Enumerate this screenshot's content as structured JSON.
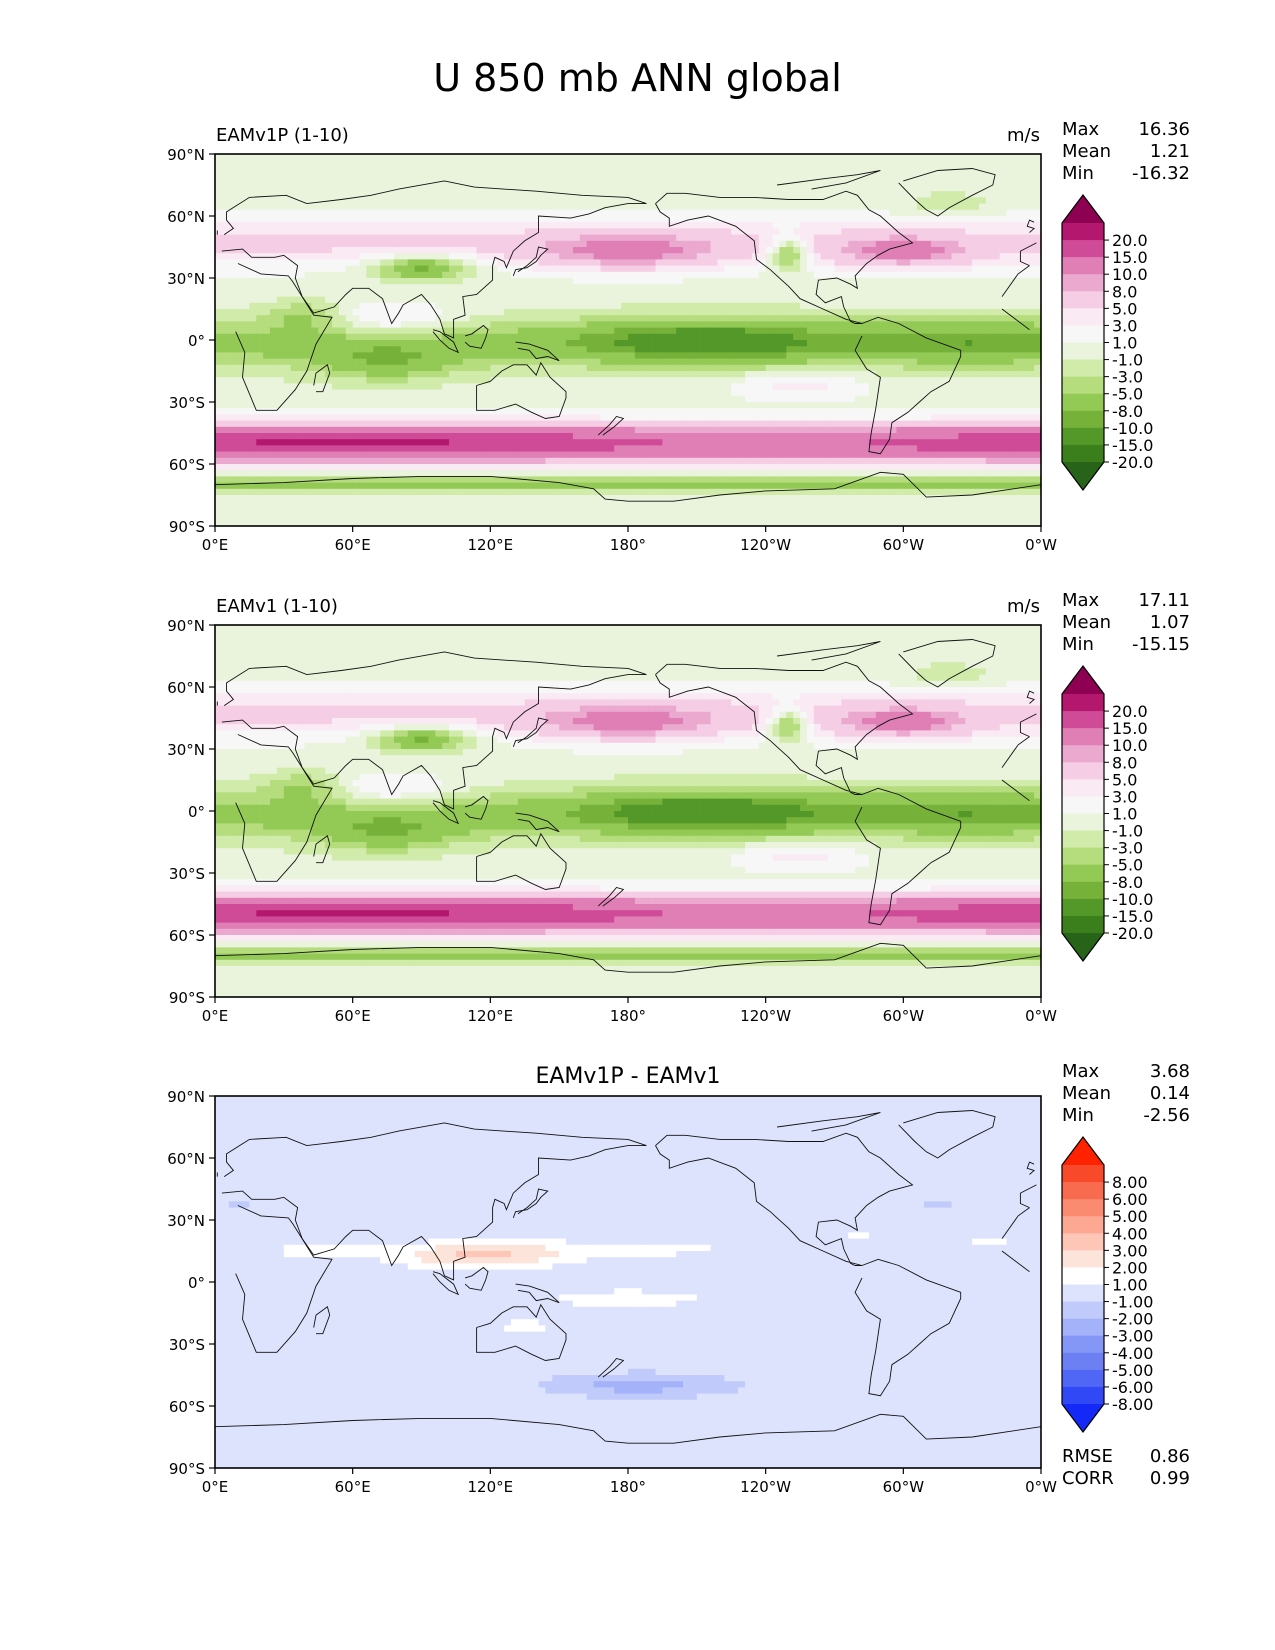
{
  "figure": {
    "title": "U 850 mb ANN global"
  },
  "axes": {
    "lat_ticks": [
      "90°N",
      "60°N",
      "30°N",
      "0°",
      "30°S",
      "60°S",
      "90°S"
    ],
    "lon_ticks": [
      "0°E",
      "60°E",
      "120°E",
      "180°",
      "120°W",
      "60°W",
      "0°W"
    ]
  },
  "chart_data": [
    {
      "type": "heatmap",
      "id": "test",
      "left_title": "EAMv1P (1-10)",
      "center_title": "",
      "units": "m/s",
      "stats": [
        {
          "label": "Max",
          "value": "16.36"
        },
        {
          "label": "Mean",
          "value": "1.21"
        },
        {
          "label": "Min",
          "value": "-16.32"
        }
      ],
      "extra_stats": [],
      "colorbar": {
        "colors": [
          "#8e0152",
          "#b3186e",
          "#cf4b98",
          "#e07fb6",
          "#eba9cf",
          "#f5cde4",
          "#faeaf3",
          "#f7f7f7",
          "#eaf4dc",
          "#d0ebaa",
          "#b5dc7d",
          "#93c955",
          "#76b23a",
          "#539828",
          "#3b7e1c",
          "#276419"
        ],
        "labels": [
          "20.0",
          "15.0",
          "10.0",
          "8.0",
          "5.0",
          "3.0",
          "1.0",
          "-1.0",
          "-3.0",
          "-5.0",
          "-8.0",
          "-10.0",
          "-15.0",
          "-20.0"
        ],
        "levels": [
          -20,
          -15,
          -10,
          -8,
          -5,
          -3,
          -1,
          1,
          3,
          5,
          8,
          10,
          15,
          20
        ]
      }
    },
    {
      "type": "heatmap",
      "id": "ref",
      "left_title": "EAMv1 (1-10)",
      "center_title": "",
      "units": "m/s",
      "stats": [
        {
          "label": "Max",
          "value": "17.11"
        },
        {
          "label": "Mean",
          "value": "1.07"
        },
        {
          "label": "Min",
          "value": "-15.15"
        }
      ],
      "extra_stats": [],
      "colorbar": {
        "colors": [
          "#8e0152",
          "#b3186e",
          "#cf4b98",
          "#e07fb6",
          "#eba9cf",
          "#f5cde4",
          "#faeaf3",
          "#f7f7f7",
          "#eaf4dc",
          "#d0ebaa",
          "#b5dc7d",
          "#93c955",
          "#76b23a",
          "#539828",
          "#3b7e1c",
          "#276419"
        ],
        "labels": [
          "20.0",
          "15.0",
          "10.0",
          "8.0",
          "5.0",
          "3.0",
          "1.0",
          "-1.0",
          "-3.0",
          "-5.0",
          "-8.0",
          "-10.0",
          "-15.0",
          "-20.0"
        ],
        "levels": [
          -20,
          -15,
          -10,
          -8,
          -5,
          -3,
          -1,
          1,
          3,
          5,
          8,
          10,
          15,
          20
        ]
      }
    },
    {
      "type": "heatmap",
      "id": "diff",
      "left_title": "",
      "center_title": "EAMv1P - EAMv1",
      "units": "",
      "stats": [
        {
          "label": "Max",
          "value": "3.68"
        },
        {
          "label": "Mean",
          "value": "0.14"
        },
        {
          "label": "Min",
          "value": "-2.56"
        }
      ],
      "extra_stats": [
        {
          "label": "RMSE",
          "value": "0.86"
        },
        {
          "label": "CORR",
          "value": "0.99"
        }
      ],
      "colorbar": {
        "colors": [
          "#ff2200",
          "#f84a2a",
          "#f86b4e",
          "#fa8b70",
          "#fca892",
          "#fec6b6",
          "#fde4db",
          "#ffffff",
          "#dde3fd",
          "#c0cbfb",
          "#a3b2f9",
          "#8597f6",
          "#6c80f4",
          "#4f67f4",
          "#3148f6",
          "#1429f7"
        ],
        "labels": [
          "8.00",
          "6.00",
          "5.00",
          "4.00",
          "3.00",
          "2.00",
          "1.00",
          "-1.00",
          "-2.00",
          "-3.00",
          "-4.00",
          "-5.00",
          "-6.00",
          "-8.00"
        ],
        "levels": [
          -8,
          -6,
          -5,
          -4,
          -3,
          -2,
          -1,
          1,
          2,
          3,
          4,
          5,
          6,
          8
        ]
      }
    }
  ]
}
